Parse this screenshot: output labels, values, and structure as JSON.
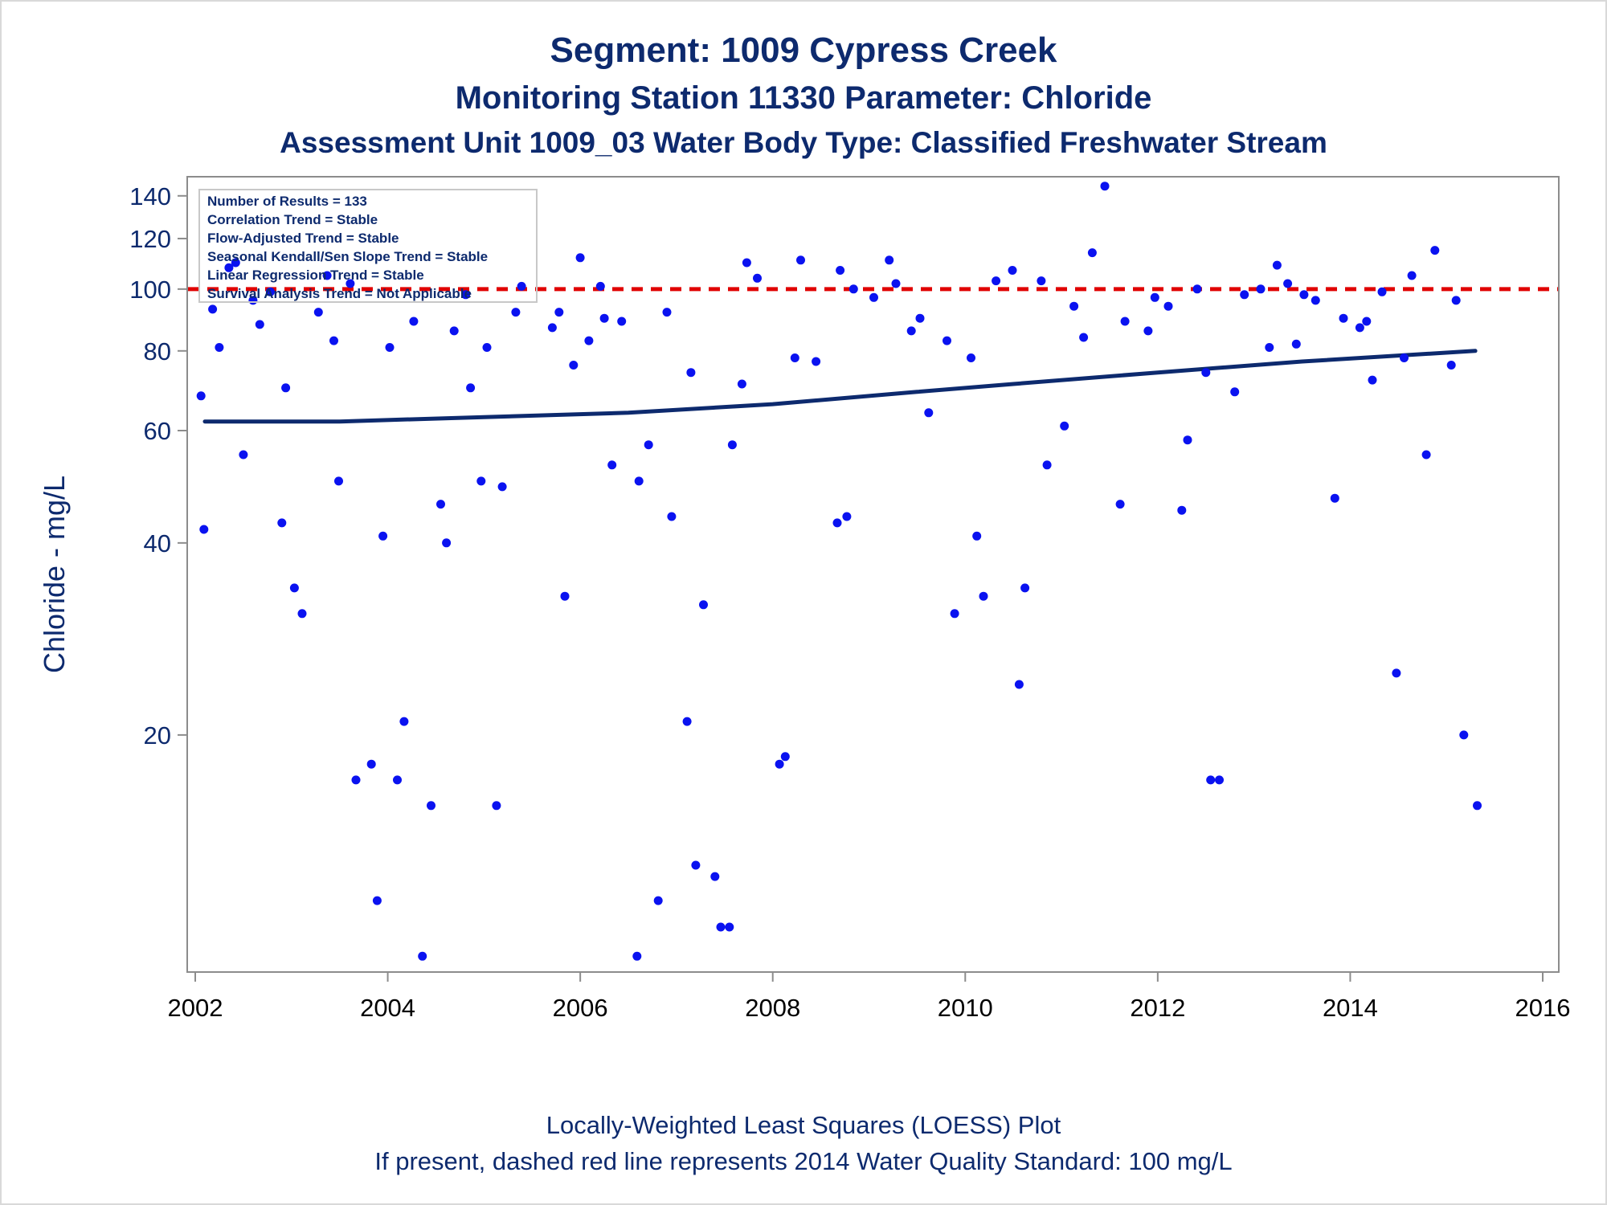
{
  "chart_data": {
    "type": "scatter",
    "title": "Segment: 1009  Cypress Creek",
    "subtitle": "Monitoring Station 11330 Parameter: Chloride",
    "subtitle2": "Assessment Unit 1009_03   Water Body Type: Classified Freshwater Stream",
    "ylabel": "Chloride - mg/L",
    "xlabel": "",
    "y_scale": "log",
    "xlim": [
      2002,
      2016
    ],
    "ylim": [
      8.5,
      150
    ],
    "y_ticks": [
      20,
      40,
      60,
      80,
      100,
      120,
      140
    ],
    "x_ticks": [
      2002,
      2004,
      2006,
      2008,
      2010,
      2012,
      2014,
      2016
    ],
    "grid": false,
    "colors": {
      "points": "#0a12f0",
      "trend": "#0d2a6e",
      "standard": "#e00000",
      "text": "#0d2a6e"
    },
    "stats_box": [
      "Number of Results = 133",
      "Correlation Trend = Stable",
      "Flow-Adjusted Trend = Stable",
      "Seasonal Kendall/Sen Slope Trend = Stable",
      "Linear Regression Trend = Stable",
      "Survival Analysis Trend = Not Applicable"
    ],
    "standard_line": {
      "value": 100
    },
    "loess": [
      [
        2002.1,
        62
      ],
      [
        2003.5,
        62
      ],
      [
        2005,
        63
      ],
      [
        2006.5,
        64
      ],
      [
        2008,
        66
      ],
      [
        2009.5,
        69
      ],
      [
        2010.5,
        71
      ],
      [
        2012,
        74
      ],
      [
        2013.5,
        77
      ],
      [
        2015.3,
        80
      ]
    ],
    "points": [
      [
        2002.06,
        68
      ],
      [
        2002.09,
        42
      ],
      [
        2002.18,
        93
      ],
      [
        2002.25,
        81
      ],
      [
        2002.35,
        108
      ],
      [
        2002.42,
        110
      ],
      [
        2002.5,
        55
      ],
      [
        2002.6,
        96
      ],
      [
        2002.67,
        88
      ],
      [
        2002.78,
        99
      ],
      [
        2002.9,
        43
      ],
      [
        2002.94,
        70
      ],
      [
        2003.03,
        34
      ],
      [
        2003.11,
        31
      ],
      [
        2003.28,
        92
      ],
      [
        2003.37,
        105
      ],
      [
        2003.44,
        83
      ],
      [
        2003.49,
        50
      ],
      [
        2003.61,
        102
      ],
      [
        2003.67,
        17
      ],
      [
        2003.83,
        18
      ],
      [
        2003.89,
        11
      ],
      [
        2003.95,
        41
      ],
      [
        2004.02,
        81
      ],
      [
        2004.1,
        17
      ],
      [
        2004.17,
        21
      ],
      [
        2004.27,
        89
      ],
      [
        2004.36,
        9
      ],
      [
        2004.45,
        15.5
      ],
      [
        2004.55,
        46
      ],
      [
        2004.61,
        40
      ],
      [
        2004.69,
        86
      ],
      [
        2004.81,
        98
      ],
      [
        2004.86,
        70
      ],
      [
        2004.97,
        50
      ],
      [
        2005.03,
        81
      ],
      [
        2005.13,
        15.5
      ],
      [
        2005.19,
        49
      ],
      [
        2005.33,
        92
      ],
      [
        2005.39,
        101
      ],
      [
        2005.71,
        87
      ],
      [
        2005.78,
        92
      ],
      [
        2005.84,
        33
      ],
      [
        2005.93,
        76
      ],
      [
        2006.0,
        112
      ],
      [
        2006.09,
        83
      ],
      [
        2006.21,
        101
      ],
      [
        2006.25,
        90
      ],
      [
        2006.33,
        53
      ],
      [
        2006.43,
        89
      ],
      [
        2006.59,
        9
      ],
      [
        2006.61,
        50
      ],
      [
        2006.71,
        57
      ],
      [
        2006.81,
        11
      ],
      [
        2006.9,
        92
      ],
      [
        2006.95,
        44
      ],
      [
        2007.11,
        21
      ],
      [
        2007.15,
        74
      ],
      [
        2007.2,
        12.5
      ],
      [
        2007.28,
        32
      ],
      [
        2007.4,
        12
      ],
      [
        2007.46,
        10
      ],
      [
        2007.55,
        10
      ],
      [
        2007.58,
        57
      ],
      [
        2007.68,
        71
      ],
      [
        2007.73,
        110
      ],
      [
        2007.84,
        104
      ],
      [
        2008.07,
        18
      ],
      [
        2008.13,
        18.5
      ],
      [
        2008.23,
        78
      ],
      [
        2008.29,
        111
      ],
      [
        2008.45,
        77
      ],
      [
        2008.67,
        43
      ],
      [
        2008.7,
        107
      ],
      [
        2008.77,
        44
      ],
      [
        2008.84,
        100
      ],
      [
        2009.05,
        97
      ],
      [
        2009.21,
        111
      ],
      [
        2009.28,
        102
      ],
      [
        2009.44,
        86
      ],
      [
        2009.53,
        90
      ],
      [
        2009.62,
        64
      ],
      [
        2009.81,
        83
      ],
      [
        2009.89,
        31
      ],
      [
        2010.06,
        78
      ],
      [
        2010.12,
        41
      ],
      [
        2010.19,
        33
      ],
      [
        2010.32,
        103
      ],
      [
        2010.49,
        107
      ],
      [
        2010.56,
        24
      ],
      [
        2010.62,
        34
      ],
      [
        2010.79,
        103
      ],
      [
        2010.85,
        53
      ],
      [
        2011.03,
        61
      ],
      [
        2011.13,
        94
      ],
      [
        2011.23,
        84
      ],
      [
        2011.32,
        114
      ],
      [
        2011.45,
        145
      ],
      [
        2011.61,
        46
      ],
      [
        2011.66,
        89
      ],
      [
        2011.9,
        86
      ],
      [
        2011.97,
        97
      ],
      [
        2012.11,
        94
      ],
      [
        2012.25,
        45
      ],
      [
        2012.31,
        58
      ],
      [
        2012.41,
        100
      ],
      [
        2012.5,
        74
      ],
      [
        2012.55,
        17
      ],
      [
        2012.64,
        17
      ],
      [
        2012.8,
        69
      ],
      [
        2012.9,
        98
      ],
      [
        2013.07,
        100
      ],
      [
        2013.16,
        81
      ],
      [
        2013.24,
        109
      ],
      [
        2013.35,
        102
      ],
      [
        2013.44,
        82
      ],
      [
        2013.52,
        98
      ],
      [
        2013.64,
        96
      ],
      [
        2013.84,
        47
      ],
      [
        2013.93,
        90
      ],
      [
        2014.1,
        87
      ],
      [
        2014.17,
        89
      ],
      [
        2014.23,
        72
      ],
      [
        2014.33,
        99
      ],
      [
        2014.48,
        25
      ],
      [
        2014.56,
        78
      ],
      [
        2014.64,
        105
      ],
      [
        2014.79,
        55
      ],
      [
        2014.88,
        115
      ],
      [
        2015.05,
        76
      ],
      [
        2015.1,
        96
      ],
      [
        2015.18,
        20
      ],
      [
        2015.32,
        15.5
      ]
    ]
  },
  "footer": {
    "line1": "Locally-Weighted Least Squares (LOESS) Plot",
    "line2": "If present, dashed red line represents 2014 Water Quality Standard: 100    mg/L"
  }
}
